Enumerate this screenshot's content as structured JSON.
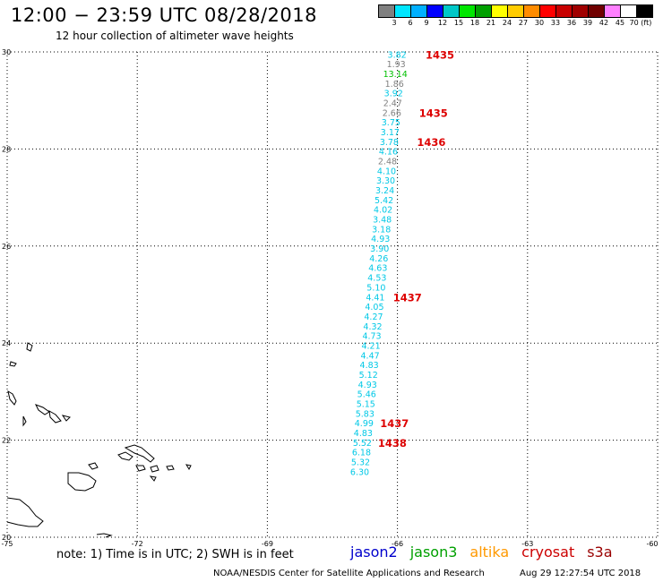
{
  "header": {
    "title": "12:00 − 23:59 UTC 08/28/2018",
    "subtitle": "12 hour collection of altimeter wave heights"
  },
  "legend": {
    "labels": [
      "3",
      "6",
      "9",
      "12",
      "15",
      "18",
      "21",
      "24",
      "27",
      "30",
      "33",
      "36",
      "39",
      "42",
      "45",
      "70 (ft)"
    ],
    "colors": [
      "#808080",
      "#00e6ff",
      "#00b0ff",
      "#0000ff",
      "#00c8c8",
      "#00e600",
      "#00a000",
      "#ffff00",
      "#ffcc00",
      "#ff8c00",
      "#ff0000",
      "#c80000",
      "#a00000",
      "#700000",
      "#ff80ff",
      "#ffffff",
      "#000000"
    ]
  },
  "map": {
    "lon_min": -75,
    "lon_max": -60,
    "lat_min": 20,
    "lat_max": 30,
    "lon_ticks": [
      "-75",
      "-72",
      "-69",
      "-66",
      "-63",
      "-60"
    ],
    "lat_ticks": [
      "30",
      "28",
      "26",
      "24",
      "22",
      "20"
    ],
    "grid": "dotted",
    "land_outline": "Bahamas / Turks and Caicos / Hispaniola coast",
    "track": {
      "satellite": "jason2",
      "observations": [
        {
          "lat": 29.94,
          "lon": -66.01,
          "swh": "3.82",
          "color": "#00c8e6"
        },
        {
          "lat": 29.74,
          "lon": -66.03,
          "swh": "1.93",
          "color": "#808080"
        },
        {
          "lat": 29.54,
          "lon": -66.05,
          "swh": "13.14",
          "color": "#00c000"
        },
        {
          "lat": 29.34,
          "lon": -66.07,
          "swh": "1.86",
          "color": "#808080"
        },
        {
          "lat": 29.14,
          "lon": -66.09,
          "swh": "3.92",
          "color": "#00c8e6"
        },
        {
          "lat": 28.94,
          "lon": -66.11,
          "swh": "2.47",
          "color": "#808080"
        },
        {
          "lat": 28.74,
          "lon": -66.13,
          "swh": "2.66",
          "color": "#808080"
        },
        {
          "lat": 28.54,
          "lon": -66.15,
          "swh": "3.75",
          "color": "#00c8e6"
        },
        {
          "lat": 28.34,
          "lon": -66.17,
          "swh": "3.17",
          "color": "#00c8e6"
        },
        {
          "lat": 28.14,
          "lon": -66.19,
          "swh": "3.78",
          "color": "#00c8e6"
        },
        {
          "lat": 27.94,
          "lon": -66.21,
          "swh": "4.16",
          "color": "#00c8e6"
        },
        {
          "lat": 27.74,
          "lon": -66.23,
          "swh": "2.48",
          "color": "#808080"
        },
        {
          "lat": 27.54,
          "lon": -66.25,
          "swh": "4.10",
          "color": "#00c8e6"
        },
        {
          "lat": 27.34,
          "lon": -66.27,
          "swh": "3.30",
          "color": "#00c8e6"
        },
        {
          "lat": 27.14,
          "lon": -66.29,
          "swh": "3.24",
          "color": "#00c8e6"
        },
        {
          "lat": 26.94,
          "lon": -66.31,
          "swh": "5.42",
          "color": "#00c8e6"
        },
        {
          "lat": 26.74,
          "lon": -66.33,
          "swh": "4.02",
          "color": "#00c8e6"
        },
        {
          "lat": 26.54,
          "lon": -66.35,
          "swh": "3.48",
          "color": "#00c8e6"
        },
        {
          "lat": 26.34,
          "lon": -66.37,
          "swh": "3.18",
          "color": "#00c8e6"
        },
        {
          "lat": 26.14,
          "lon": -66.39,
          "swh": "4.93",
          "color": "#00c8e6"
        },
        {
          "lat": 25.94,
          "lon": -66.41,
          "swh": "3.90",
          "color": "#00c8e6"
        },
        {
          "lat": 25.74,
          "lon": -66.43,
          "swh": "4.26",
          "color": "#00c8e6"
        },
        {
          "lat": 25.54,
          "lon": -66.45,
          "swh": "4.63",
          "color": "#00c8e6"
        },
        {
          "lat": 25.34,
          "lon": -66.47,
          "swh": "4.53",
          "color": "#00c8e6"
        },
        {
          "lat": 25.14,
          "lon": -66.49,
          "swh": "5.10",
          "color": "#00c8e6"
        },
        {
          "lat": 24.94,
          "lon": -66.51,
          "swh": "4.41",
          "color": "#00c8e6"
        },
        {
          "lat": 24.74,
          "lon": -66.53,
          "swh": "4.05",
          "color": "#00c8e6"
        },
        {
          "lat": 24.54,
          "lon": -66.55,
          "swh": "4.27",
          "color": "#00c8e6"
        },
        {
          "lat": 24.34,
          "lon": -66.57,
          "swh": "4.32",
          "color": "#00c8e6"
        },
        {
          "lat": 24.14,
          "lon": -66.59,
          "swh": "4.73",
          "color": "#00c8e6"
        },
        {
          "lat": 23.94,
          "lon": -66.61,
          "swh": "4.21",
          "color": "#00c8e6"
        },
        {
          "lat": 23.74,
          "lon": -66.63,
          "swh": "4.47",
          "color": "#00c8e6"
        },
        {
          "lat": 23.54,
          "lon": -66.65,
          "swh": "4.83",
          "color": "#00c8e6"
        },
        {
          "lat": 23.34,
          "lon": -66.67,
          "swh": "5.12",
          "color": "#00c8e6"
        },
        {
          "lat": 23.14,
          "lon": -66.69,
          "swh": "4.93",
          "color": "#00c8e6"
        },
        {
          "lat": 22.94,
          "lon": -66.71,
          "swh": "5.46",
          "color": "#00c8e6"
        },
        {
          "lat": 22.74,
          "lon": -66.73,
          "swh": "5.15",
          "color": "#00c8e6"
        },
        {
          "lat": 22.54,
          "lon": -66.75,
          "swh": "5.83",
          "color": "#00c8e6"
        },
        {
          "lat": 22.34,
          "lon": -66.77,
          "swh": "4.99",
          "color": "#00c8e6"
        },
        {
          "lat": 22.14,
          "lon": -66.79,
          "swh": "4.83",
          "color": "#00c8e6"
        },
        {
          "lat": 21.94,
          "lon": -66.81,
          "swh": "5.52",
          "color": "#00c8e6"
        },
        {
          "lat": 21.74,
          "lon": -66.83,
          "swh": "6.18",
          "color": "#00c8e6"
        },
        {
          "lat": 21.54,
          "lon": -66.85,
          "swh": "5.32",
          "color": "#00c8e6"
        },
        {
          "lat": 21.34,
          "lon": -66.87,
          "swh": "6.30",
          "color": "#00c8e6"
        }
      ],
      "time_labels": [
        {
          "lat": 29.94,
          "lon": -65.35,
          "text": "1435"
        },
        {
          "lat": 28.74,
          "lon": -65.5,
          "text": "1435"
        },
        {
          "lat": 28.14,
          "lon": -65.55,
          "text": "1436"
        },
        {
          "lat": 24.94,
          "lon": -66.1,
          "text": "1437"
        },
        {
          "lat": 22.34,
          "lon": -66.4,
          "text": "1437"
        },
        {
          "lat": 21.94,
          "lon": -66.45,
          "text": "1438"
        }
      ]
    }
  },
  "footer": {
    "note": "note: 1) Time is in UTC; 2) SWH is in feet",
    "satellites": [
      {
        "name": "jason2",
        "color": "#0000cc"
      },
      {
        "name": "jason3",
        "color": "#00a000"
      },
      {
        "name": "altika",
        "color": "#ff9900"
      },
      {
        "name": "cryosat",
        "color": "#cc0000"
      },
      {
        "name": "s3a",
        "color": "#990000"
      }
    ],
    "credit": "NOAA/NESDIS Center for Satellite Applications and Research",
    "timestamp": "Aug 29 12:27:54 UTC 2018"
  }
}
